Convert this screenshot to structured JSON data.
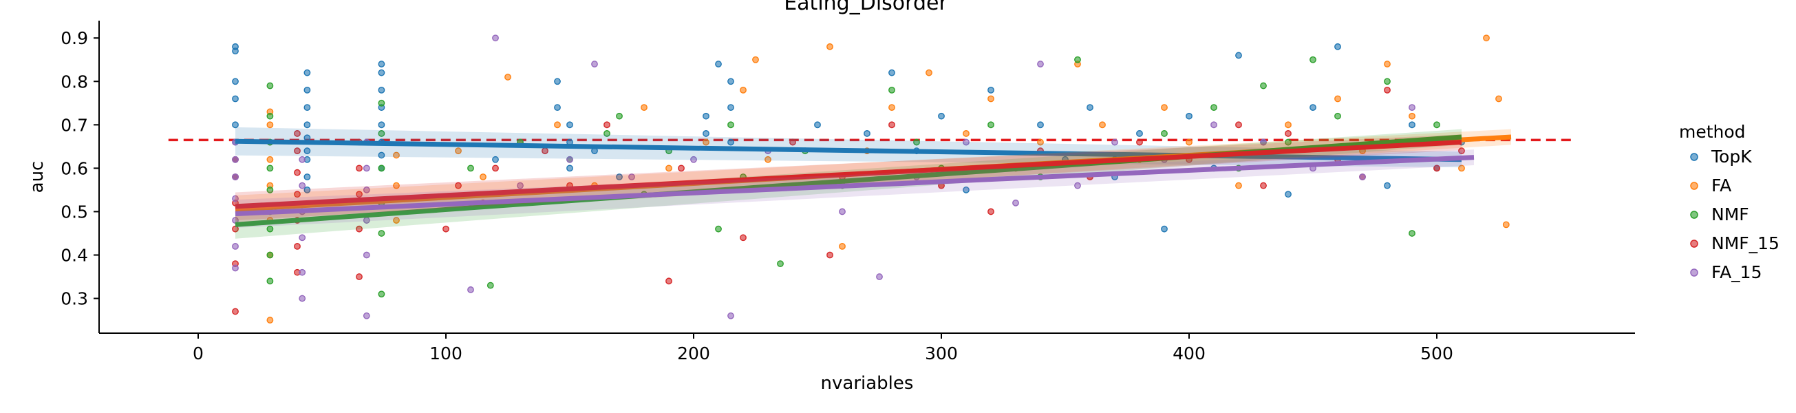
{
  "chart_data": {
    "type": "scatter",
    "title": "Eating_Disorder",
    "xlabel": "nvariables",
    "ylabel": "auc",
    "xlim": [
      -40,
      580
    ],
    "ylim": [
      0.22,
      0.94
    ],
    "x_ticks": [
      0,
      100,
      200,
      300,
      400,
      500
    ],
    "x_tick_labels": [
      "0",
      "100",
      "200",
      "300",
      "400",
      "500"
    ],
    "y_ticks": [
      0.3,
      0.4,
      0.5,
      0.6,
      0.7,
      0.8,
      0.9
    ],
    "y_tick_labels": [
      "0.3",
      "0.4",
      "0.5",
      "0.6",
      "0.7",
      "0.8",
      "0.9"
    ],
    "grid": false,
    "legend_position": "right",
    "legend_title": "method",
    "reference_line": {
      "y": 0.665,
      "x_range": [
        -12,
        555
      ],
      "color": "#e31a1c",
      "style": "dashed"
    },
    "series": [
      {
        "name": "TopK",
        "color": "#1f77b4",
        "x": [
          15,
          15,
          15,
          15,
          15,
          15,
          15,
          15,
          44,
          44,
          44,
          44,
          44,
          44,
          44,
          44,
          44,
          74,
          74,
          74,
          74,
          74,
          74,
          74,
          74,
          120,
          145,
          145,
          150,
          150,
          150,
          160,
          170,
          205,
          205,
          210,
          215,
          215,
          215,
          250,
          270,
          280,
          290,
          300,
          310,
          320,
          330,
          340,
          350,
          360,
          370,
          380,
          390,
          400,
          410,
          420,
          430,
          440,
          450,
          460,
          470,
          480,
          490,
          500,
          510
        ],
        "y": [
          0.88,
          0.87,
          0.8,
          0.76,
          0.7,
          0.66,
          0.62,
          0.58,
          0.82,
          0.78,
          0.74,
          0.7,
          0.67,
          0.64,
          0.62,
          0.58,
          0.55,
          0.84,
          0.82,
          0.78,
          0.74,
          0.7,
          0.66,
          0.63,
          0.6,
          0.62,
          0.8,
          0.74,
          0.7,
          0.66,
          0.6,
          0.64,
          0.58,
          0.72,
          0.68,
          0.84,
          0.8,
          0.74,
          0.66,
          0.7,
          0.68,
          0.82,
          0.64,
          0.72,
          0.55,
          0.78,
          0.6,
          0.7,
          0.62,
          0.74,
          0.58,
          0.68,
          0.46,
          0.72,
          0.6,
          0.86,
          0.66,
          0.54,
          0.74,
          0.88,
          0.62,
          0.56,
          0.7,
          0.6,
          0.66
        ],
        "fit": [
          [
            15,
            0.662
          ],
          [
            510,
            0.62
          ]
        ]
      },
      {
        "name": "FA",
        "color": "#ff7f0e",
        "x": [
          29,
          29,
          29,
          29,
          29,
          29,
          29,
          29,
          80,
          80,
          80,
          105,
          115,
          125,
          130,
          145,
          160,
          180,
          190,
          205,
          220,
          225,
          230,
          250,
          255,
          260,
          270,
          280,
          295,
          300,
          310,
          320,
          330,
          340,
          355,
          360,
          365,
          380,
          390,
          400,
          420,
          440,
          460,
          470,
          480,
          490,
          500,
          510,
          520,
          525,
          528
        ],
        "y": [
          0.25,
          0.4,
          0.48,
          0.56,
          0.62,
          0.66,
          0.7,
          0.73,
          0.48,
          0.56,
          0.63,
          0.64,
          0.58,
          0.81,
          0.66,
          0.7,
          0.56,
          0.74,
          0.6,
          0.66,
          0.78,
          0.85,
          0.62,
          0.56,
          0.88,
          0.42,
          0.64,
          0.74,
          0.82,
          0.56,
          0.68,
          0.76,
          0.6,
          0.66,
          0.84,
          0.58,
          0.7,
          0.62,
          0.74,
          0.66,
          0.56,
          0.7,
          0.76,
          0.64,
          0.84,
          0.72,
          0.66,
          0.6,
          0.9,
          0.76,
          0.47
        ],
        "fit": [
          [
            15,
            0.505
          ],
          [
            530,
            0.672
          ]
        ]
      },
      {
        "name": "NMF",
        "color": "#2ca02c",
        "x": [
          29,
          29,
          29,
          29,
          29,
          29,
          29,
          29,
          29,
          74,
          74,
          74,
          74,
          74,
          74,
          110,
          118,
          120,
          130,
          150,
          165,
          170,
          180,
          190,
          210,
          215,
          220,
          235,
          245,
          260,
          280,
          290,
          300,
          320,
          340,
          355,
          370,
          390,
          410,
          420,
          430,
          440,
          450,
          460,
          470,
          480,
          490,
          500
        ],
        "y": [
          0.79,
          0.72,
          0.66,
          0.6,
          0.55,
          0.5,
          0.46,
          0.4,
          0.34,
          0.75,
          0.68,
          0.6,
          0.52,
          0.45,
          0.31,
          0.6,
          0.33,
          0.52,
          0.66,
          0.62,
          0.68,
          0.72,
          0.54,
          0.64,
          0.46,
          0.7,
          0.58,
          0.38,
          0.64,
          0.56,
          0.78,
          0.66,
          0.6,
          0.7,
          0.58,
          0.85,
          0.62,
          0.68,
          0.74,
          0.6,
          0.79,
          0.66,
          0.85,
          0.72,
          0.62,
          0.8,
          0.45,
          0.7
        ],
        "fit": [
          [
            15,
            0.47
          ],
          [
            510,
            0.672
          ]
        ]
      },
      {
        "name": "NMF_15",
        "color": "#d62728",
        "x": [
          15,
          15,
          15,
          15,
          15,
          15,
          40,
          40,
          40,
          40,
          40,
          40,
          40,
          65,
          65,
          65,
          65,
          65,
          100,
          105,
          115,
          120,
          140,
          150,
          165,
          190,
          195,
          220,
          240,
          255,
          260,
          280,
          300,
          320,
          340,
          360,
          380,
          400,
          420,
          430,
          440,
          460,
          470,
          480,
          490,
          500,
          510
        ],
        "y": [
          0.27,
          0.38,
          0.46,
          0.52,
          0.58,
          0.62,
          0.36,
          0.42,
          0.48,
          0.54,
          0.59,
          0.64,
          0.68,
          0.35,
          0.46,
          0.54,
          0.6,
          0.66,
          0.46,
          0.56,
          0.52,
          0.6,
          0.64,
          0.56,
          0.7,
          0.34,
          0.6,
          0.44,
          0.66,
          0.4,
          0.58,
          0.7,
          0.56,
          0.5,
          0.64,
          0.58,
          0.66,
          0.62,
          0.7,
          0.56,
          0.68,
          0.62,
          0.58,
          0.78,
          0.66,
          0.6,
          0.64
        ],
        "fit": [
          [
            15,
            0.512
          ],
          [
            510,
            0.66
          ]
        ]
      },
      {
        "name": "FA_15",
        "color": "#9467bd",
        "x": [
          15,
          15,
          15,
          15,
          15,
          15,
          15,
          42,
          42,
          42,
          42,
          42,
          42,
          68,
          68,
          68,
          68,
          68,
          68,
          110,
          120,
          130,
          150,
          160,
          175,
          200,
          215,
          230,
          260,
          275,
          290,
          310,
          330,
          340,
          355,
          370,
          390,
          410,
          430,
          450,
          470,
          490,
          500
        ],
        "y": [
          0.37,
          0.42,
          0.48,
          0.53,
          0.58,
          0.62,
          0.66,
          0.3,
          0.36,
          0.44,
          0.5,
          0.56,
          0.62,
          0.26,
          0.4,
          0.48,
          0.55,
          0.6,
          0.66,
          0.32,
          0.9,
          0.56,
          0.62,
          0.84,
          0.58,
          0.62,
          0.26,
          0.64,
          0.5,
          0.35,
          0.58,
          0.66,
          0.52,
          0.84,
          0.56,
          0.66,
          0.62,
          0.7,
          0.66,
          0.6,
          0.58,
          0.74,
          0.66
        ],
        "fit": [
          [
            15,
            0.495
          ],
          [
            515,
            0.625
          ]
        ]
      }
    ]
  }
}
